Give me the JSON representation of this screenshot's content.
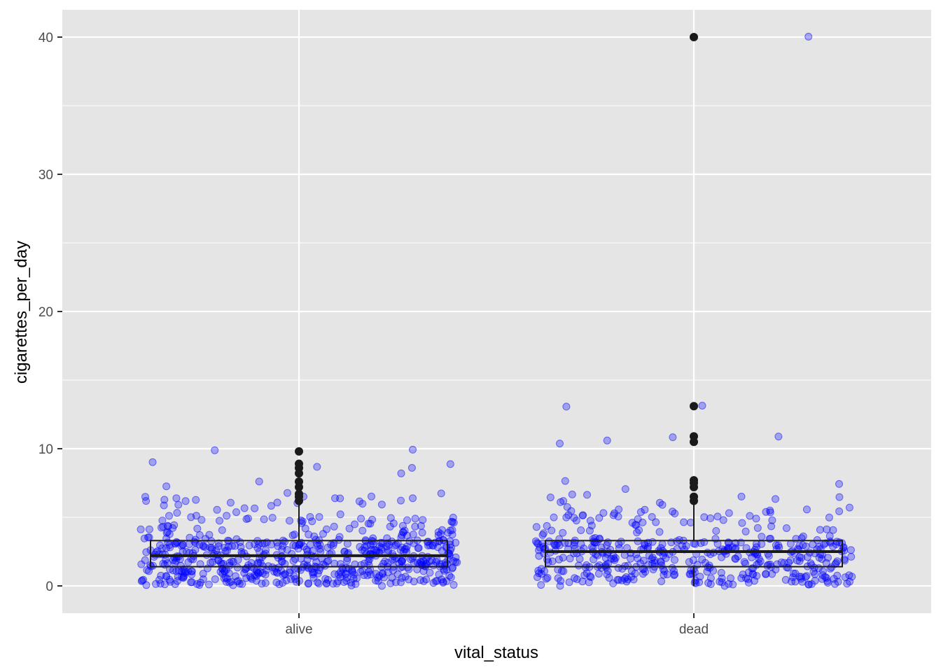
{
  "chart_data": {
    "type": "boxplot",
    "xlabel": "vital_status",
    "ylabel": "cigarettes_per_day",
    "categories": [
      "alive",
      "dead"
    ],
    "ylim": [
      -2,
      42
    ],
    "yticks": [
      0,
      10,
      20,
      30,
      40
    ],
    "y_minor_ticks": [
      5,
      15,
      25,
      35
    ],
    "grid": true,
    "colors": {
      "panel_background": "#e5e5e5",
      "grid_line": "#ffffff",
      "jitter_point": "#0000ff",
      "box_outline": "#1a1a1a",
      "outlier": "#1a1a1a"
    },
    "boxes": [
      {
        "category": "alive",
        "q1": 1.4,
        "median": 2.2,
        "q3": 3.3,
        "whisker_low": 0.0,
        "whisker_high": 6.0,
        "outliers": [
          6.2,
          6.5,
          6.7,
          7.2,
          7.6,
          8.2,
          8.6,
          8.9,
          9.8
        ]
      },
      {
        "category": "dead",
        "q1": 1.4,
        "median": 2.5,
        "q3": 3.3,
        "whisker_low": 0.0,
        "whisker_high": 6.0,
        "outliers": [
          6.2,
          6.5,
          7.2,
          7.5,
          7.7,
          10.5,
          10.9,
          13.1,
          40.0
        ]
      }
    ],
    "jitter_points": {
      "alive": {
        "n": 640,
        "notable_values": [
          8.6,
          8.8,
          8.9,
          8.2,
          7.7,
          9.8,
          9.8,
          8.6,
          7.2,
          6.6,
          6.5
        ]
      },
      "dead": {
        "n": 470,
        "notable_values": [
          10.5,
          13.1,
          13.1,
          10.9,
          10.9,
          10.5,
          7.7,
          7.4,
          7.2,
          40.0
        ]
      }
    }
  }
}
